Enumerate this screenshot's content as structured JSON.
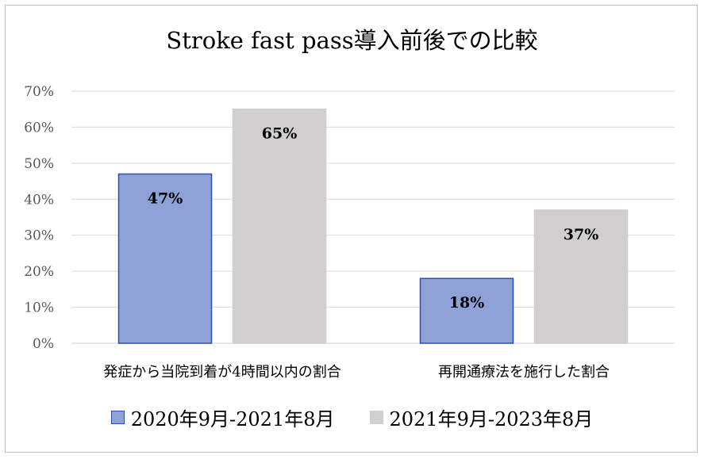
{
  "chart_data": {
    "type": "bar",
    "title": "Stroke fast pass導入前後での比較",
    "categories": [
      "発症から当院到着が4時間以内の割合",
      "再開通療法を施行した割合"
    ],
    "series": [
      {
        "name": "2020年9月-2021年8月",
        "values": [
          47,
          18
        ],
        "labels": [
          "47%",
          "18%"
        ],
        "color": "#8fa2d8",
        "border": "#2f4fb0"
      },
      {
        "name": "2021年9月-2023年8月",
        "values": [
          65,
          37
        ],
        "labels": [
          "65%",
          "37%"
        ],
        "color": "#d0cece",
        "border": "#d0cece"
      }
    ],
    "ylim": [
      0,
      70
    ],
    "yticks": [
      {
        "value": 0,
        "label": "0%"
      },
      {
        "value": 10,
        "label": "10%"
      },
      {
        "value": 20,
        "label": "20%"
      },
      {
        "value": 30,
        "label": "30%"
      },
      {
        "value": 40,
        "label": "40%"
      },
      {
        "value": 50,
        "label": "50%"
      },
      {
        "value": 60,
        "label": "60%"
      },
      {
        "value": 70,
        "label": "70%"
      }
    ],
    "grid": true,
    "legend_position": "bottom",
    "gridline_color": "#d9d9d9"
  }
}
